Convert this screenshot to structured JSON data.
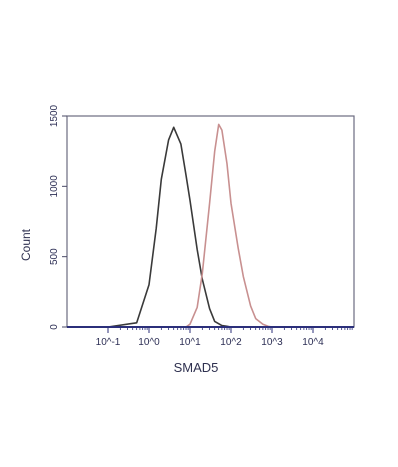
{
  "chart_data": {
    "type": "line",
    "title": "",
    "xlabel": "SMAD5",
    "ylabel": "Count",
    "x_scale": "log",
    "xlim": [
      0.01,
      100000
    ],
    "ylim": [
      0,
      1500
    ],
    "x_tick_values": [
      0.1,
      1,
      10,
      100,
      1000,
      10000
    ],
    "x_tick_labels": [
      "10^-1",
      "10^0",
      "10^1",
      "10^2",
      "10^3",
      "10^4"
    ],
    "y_ticks": [
      0,
      500,
      1000,
      1500
    ],
    "y_tick_labels": [
      "0",
      "500",
      "1000",
      "1500"
    ],
    "grid": false,
    "legend": "none",
    "series": [
      {
        "color": "#3a3a3a",
        "x": [
          0.1,
          0.5,
          1,
          1.5,
          2,
          3,
          4,
          6,
          8,
          10,
          15,
          20,
          30,
          40,
          60,
          80,
          100
        ],
        "y": [
          0,
          30,
          300,
          700,
          1050,
          1330,
          1420,
          1300,
          1080,
          900,
          550,
          340,
          130,
          40,
          10,
          5,
          0
        ]
      },
      {
        "color": "#c89090",
        "x": [
          8,
          10,
          15,
          20,
          30,
          40,
          50,
          60,
          80,
          100,
          150,
          200,
          300,
          400,
          600,
          800,
          1000
        ],
        "y": [
          0,
          20,
          140,
          380,
          880,
          1250,
          1440,
          1400,
          1160,
          880,
          560,
          360,
          150,
          60,
          20,
          5,
          0
        ]
      }
    ]
  }
}
